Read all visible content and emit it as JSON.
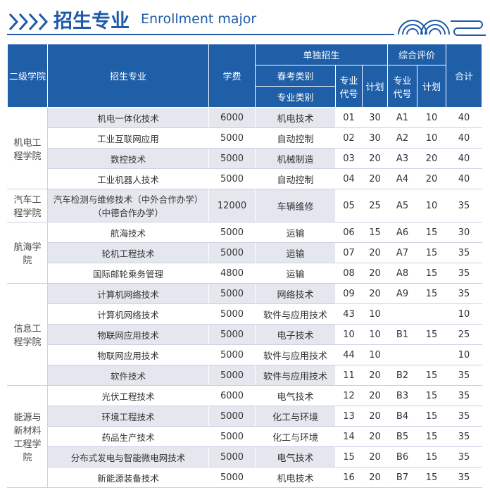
{
  "header": {
    "title": "招生专业",
    "subtitle": "Enrollment major"
  },
  "table": {
    "headers": {
      "college": "二级学院",
      "major": "招生专业",
      "fee": "学费",
      "separate": "单独招生",
      "spring_category": "春考类别",
      "major_category": "专业类别",
      "code": "专业代号",
      "plan": "计划",
      "comprehensive": "综合评价",
      "code2": "专业代号",
      "plan2": "计划",
      "total": "合计"
    },
    "colleges": [
      {
        "name": "机电工程学院",
        "rows": [
          [
            "机电一体化技术",
            6000,
            "机电技术",
            "01",
            30,
            "A1",
            10,
            40
          ],
          [
            "工业互联网应用",
            5000,
            "自动控制",
            "02",
            30,
            "A2",
            10,
            40
          ],
          [
            "数控技术",
            5000,
            "机械制造",
            "03",
            20,
            "A3",
            20,
            40
          ],
          [
            "工业机器人技术",
            5000,
            "自动控制",
            "04",
            20,
            "A4",
            20,
            40
          ]
        ]
      },
      {
        "name": "汽车工程学院",
        "rows": [
          [
            "汽车检测与维修技术（中外合作办学）（中德合作办学）",
            12000,
            "车辆维修",
            "05",
            25,
            "A5",
            10,
            35
          ]
        ]
      },
      {
        "name": "航海学院",
        "rows": [
          [
            "航海技术",
            5000,
            "运输",
            "06",
            15,
            "A6",
            15,
            30
          ],
          [
            "轮机工程技术",
            5000,
            "运输",
            "07",
            20,
            "A7",
            15,
            35
          ],
          [
            "国际邮轮乘务管理",
            4800,
            "运输",
            "08",
            20,
            "A8",
            15,
            35
          ]
        ]
      },
      {
        "name": "信息工程学院",
        "rows": [
          [
            "计算机网络技术",
            5000,
            "网络技术",
            "09",
            20,
            "A9",
            15,
            35
          ],
          [
            "计算机网络技术",
            5000,
            "软件与应用技术",
            "43",
            10,
            null,
            null,
            10
          ],
          [
            "物联网应用技术",
            5000,
            "电子技术",
            "10",
            10,
            "B1",
            15,
            25
          ],
          [
            "物联网应用技术",
            5000,
            "软件与应用技术",
            "44",
            10,
            null,
            null,
            10
          ],
          [
            "软件技术",
            5000,
            "软件与应用技术",
            "11",
            20,
            "B2",
            15,
            35
          ]
        ]
      },
      {
        "name": "能源与新材料工程学院",
        "rows": [
          [
            "光伏工程技术",
            6000,
            "电气技术",
            "12",
            20,
            "B3",
            15,
            35
          ],
          [
            "环境工程技术",
            5000,
            "化工与环境",
            "13",
            20,
            "B4",
            15,
            35
          ],
          [
            "药品生产技术",
            5000,
            "化工与环境",
            "14",
            20,
            "B5",
            15,
            35
          ],
          [
            "分布式发电与智能微电网技术",
            5000,
            "电气技术",
            "15",
            20,
            "B6",
            15,
            35
          ],
          [
            "新能源装备技术",
            5000,
            "机电技术",
            "16",
            20,
            "B7",
            15,
            35
          ]
        ]
      }
    ]
  }
}
